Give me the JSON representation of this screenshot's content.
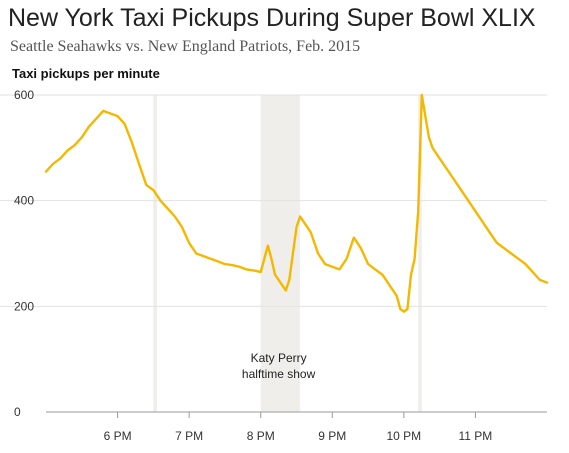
{
  "title": "New York Taxi Pickups During Super Bowl XLIX",
  "subtitle": "Seattle Seahawks vs. New England Patriots, Feb. 2015",
  "chart_data": {
    "type": "line",
    "ylabel": "Taxi pickups per minute",
    "ylim": [
      0,
      600
    ],
    "yticks": [
      0,
      200,
      400,
      600
    ],
    "xticks": [
      {
        "x": "6 PM",
        "v": 18
      },
      {
        "x": "7 PM",
        "v": 19
      },
      {
        "x": "8 PM",
        "v": 20
      },
      {
        "x": "9 PM",
        "v": 21
      },
      {
        "x": "10 PM",
        "v": 22
      },
      {
        "x": "11 PM",
        "v": 23
      }
    ],
    "xlim": [
      17.0,
      24.0
    ],
    "line_color": "#f5b800",
    "grid": true,
    "band_color": "#f0eeeb",
    "annotations": [
      {
        "text": [
          "Katy Perry",
          "halftime show"
        ],
        "x": 20.25
      }
    ],
    "shaded": [
      {
        "x_start": 20.0,
        "x_end": 20.55,
        "label": "Katy Perry halftime show"
      },
      {
        "x_start": 18.5,
        "x_end": 18.55
      },
      {
        "x_start": 22.2,
        "x_end": 22.25
      }
    ],
    "series": [
      {
        "x": [
          17.0,
          17.1,
          17.2,
          17.3,
          17.4,
          17.5,
          17.6,
          17.7,
          17.8,
          17.9,
          18.0,
          18.1,
          18.2,
          18.3,
          18.4,
          18.5,
          18.6,
          18.7,
          18.8,
          18.9,
          19.0,
          19.1,
          19.2,
          19.3,
          19.4,
          19.5,
          19.6,
          19.7,
          19.8,
          19.9,
          20.0,
          20.05,
          20.1,
          20.15,
          20.2,
          20.3,
          20.35,
          20.4,
          20.45,
          20.5,
          20.55,
          20.6,
          20.7,
          20.8,
          20.9,
          21.0,
          21.1,
          21.2,
          21.3,
          21.4,
          21.5,
          21.6,
          21.7,
          21.8,
          21.9,
          21.95,
          22.0,
          22.05,
          22.1,
          22.15,
          22.2,
          22.25,
          22.3,
          22.35,
          22.4,
          22.5,
          22.6,
          22.7,
          22.8,
          22.9,
          23.0,
          23.1,
          23.2,
          23.3,
          23.4,
          23.5,
          23.6,
          23.7,
          23.8,
          23.9,
          24.0
        ],
        "values": [
          455,
          470,
          480,
          495,
          505,
          520,
          540,
          555,
          570,
          565,
          560,
          545,
          510,
          470,
          430,
          420,
          400,
          385,
          370,
          350,
          320,
          300,
          295,
          290,
          285,
          280,
          278,
          275,
          270,
          268,
          265,
          290,
          315,
          290,
          260,
          240,
          230,
          250,
          300,
          350,
          370,
          360,
          340,
          300,
          280,
          275,
          270,
          290,
          330,
          310,
          280,
          270,
          260,
          240,
          220,
          195,
          190,
          195,
          260,
          290,
          380,
          600,
          560,
          520,
          500,
          480,
          460,
          440,
          420,
          400,
          380,
          360,
          340,
          320,
          310,
          300,
          290,
          280,
          265,
          250,
          245
        ]
      }
    ]
  }
}
